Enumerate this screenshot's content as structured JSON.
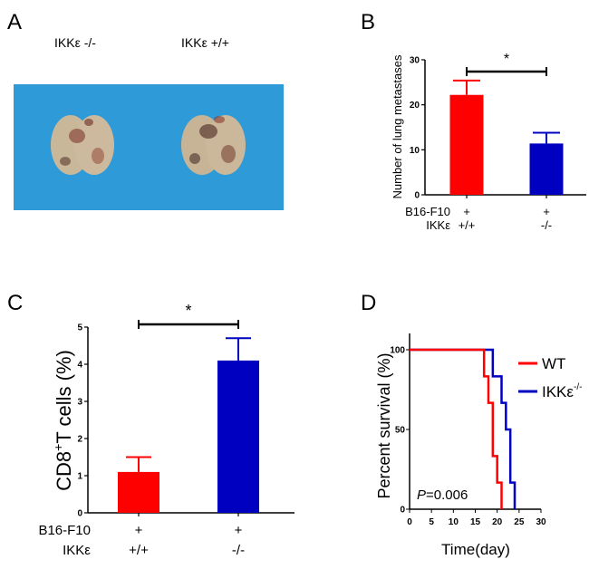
{
  "chart_data": [
    {
      "panel": "A",
      "type": "image",
      "labels": [
        "IKKε -/-",
        "IKKε +/+"
      ]
    },
    {
      "panel": "B",
      "type": "bar",
      "categories": [
        "+/+",
        "-/-"
      ],
      "row_labels": [
        "B16-F10",
        "IKKε"
      ],
      "row1_values": [
        "+",
        "+"
      ],
      "values": [
        22.2,
        11.4
      ],
      "errors_upper": [
        25.4,
        13.8
      ],
      "colors": [
        "#ff0000",
        "#0000c0"
      ],
      "ylabel": "Number of lung metastases",
      "ylim": [
        0,
        30
      ],
      "yticks": [
        "0",
        "10",
        "20",
        "30"
      ],
      "significance": "*"
    },
    {
      "panel": "C",
      "type": "bar",
      "categories": [
        "+/+",
        "-/-"
      ],
      "row_labels": [
        "B16-F10",
        "IKKε"
      ],
      "row1_values": [
        "+",
        "+"
      ],
      "values": [
        1.1,
        4.1
      ],
      "errors_upper": [
        1.5,
        4.7
      ],
      "colors": [
        "#ff0000",
        "#0000c0"
      ],
      "ylabel_main": "CD8",
      "ylabel_sup": "+",
      "ylabel_rest": "T cells (%)",
      "ylim": [
        0,
        5
      ],
      "yticks": [
        "0",
        "1",
        "2",
        "3",
        "4",
        "5"
      ],
      "significance": "*"
    },
    {
      "panel": "D",
      "type": "line",
      "xlabel": "Time(day)",
      "ylabel": "Percent survival (%)",
      "xlim": [
        0,
        30
      ],
      "ylim": [
        0,
        100
      ],
      "xticks": [
        "0",
        "5",
        "10",
        "15",
        "20",
        "25",
        "30"
      ],
      "yticks": [
        "0",
        "50",
        "100"
      ],
      "annotation_p": "P",
      "annotation_val": "=0.006",
      "series": [
        {
          "name": "WT",
          "color": "#ff0000",
          "steps": [
            [
              0,
              100
            ],
            [
              17,
              83.3
            ],
            [
              18,
              66.7
            ],
            [
              19,
              33.3
            ],
            [
              20,
              16.7
            ],
            [
              21,
              0
            ]
          ]
        },
        {
          "name": "IKKε",
          "sup": "-/-",
          "color": "#0000c0",
          "steps": [
            [
              0,
              100
            ],
            [
              19,
              83.3
            ],
            [
              21,
              66.7
            ],
            [
              22,
              50
            ],
            [
              23,
              16.7
            ],
            [
              24,
              0
            ]
          ]
        }
      ]
    }
  ],
  "panel_letters": [
    "A",
    "B",
    "C",
    "D"
  ]
}
